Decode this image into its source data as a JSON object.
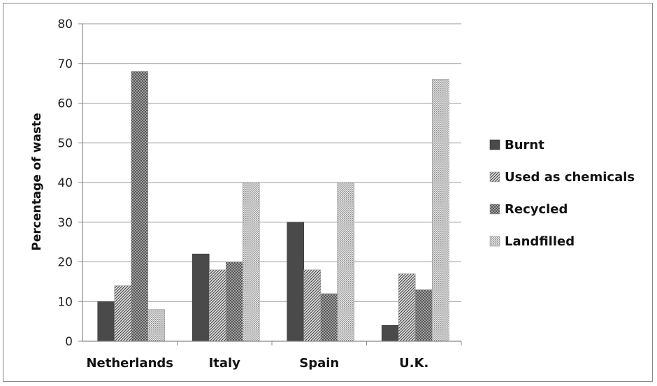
{
  "chart_data": {
    "type": "bar",
    "title": "",
    "xlabel": "",
    "ylabel": "Percentage of waste",
    "ylim": [
      0,
      80
    ],
    "yticks": [
      0,
      10,
      20,
      30,
      40,
      50,
      60,
      70,
      80
    ],
    "grid": true,
    "legend_position": "right",
    "categories": [
      "Netherlands",
      "Italy",
      "Spain",
      "U.K."
    ],
    "series": [
      {
        "name": "Burnt",
        "values": [
          10,
          22,
          30,
          4
        ],
        "fill": "solid",
        "color": "#4a4a4a"
      },
      {
        "name": "Used as chemicals",
        "values": [
          14,
          18,
          18,
          17
        ],
        "fill": "diagonal",
        "color": "#555555"
      },
      {
        "name": "Recycled",
        "values": [
          68,
          20,
          12,
          13
        ],
        "fill": "crosshatch",
        "color": "#666666"
      },
      {
        "name": "Landfilled",
        "values": [
          8,
          40,
          40,
          66
        ],
        "fill": "dots",
        "color": "#8a8a8a"
      }
    ]
  }
}
